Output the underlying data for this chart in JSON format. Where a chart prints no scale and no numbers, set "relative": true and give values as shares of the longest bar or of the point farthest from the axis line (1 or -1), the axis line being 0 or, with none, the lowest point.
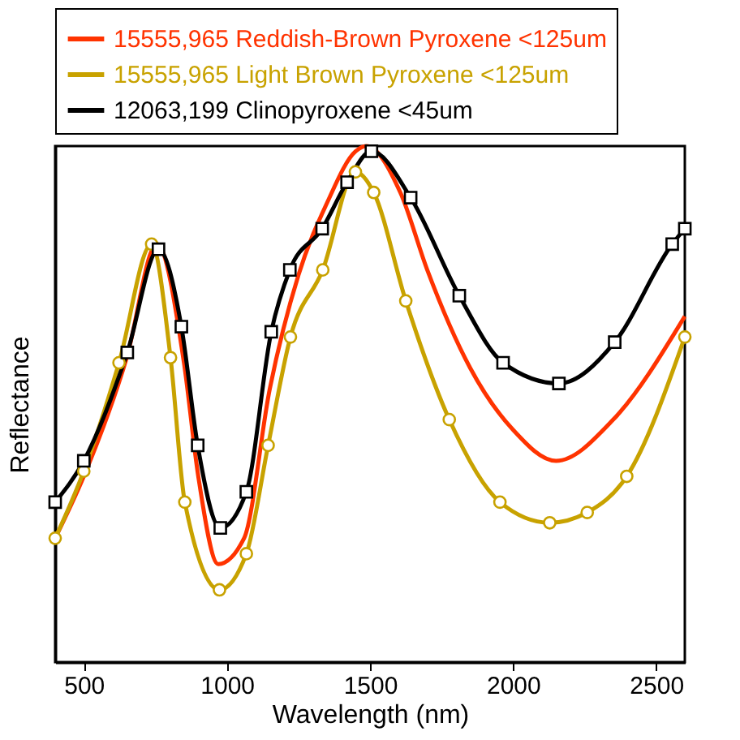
{
  "chart_data": {
    "type": "line",
    "xlabel": "Wavelength (nm)",
    "ylabel": "Reflectance",
    "relative": true,
    "xlim": [
      400,
      2600
    ],
    "xticks": [
      500,
      1000,
      1500,
      2000,
      2500
    ],
    "legend": "top",
    "grid": false,
    "line_style": "solid",
    "series": [
      {
        "name": "15555,965 Reddish-Brown Pyroxene <125um",
        "color": "#ff3300",
        "marker": "none",
        "x": [
          400,
          500,
          650,
          755,
          850,
          900,
          970,
          1060,
          1150,
          1250,
          1350,
          1450,
          1487,
          1606,
          1700,
          1850,
          2000,
          2150,
          2350,
          2600
        ],
        "values": [
          0.24,
          0.36,
          0.59,
          0.81,
          0.58,
          0.36,
          0.19,
          0.24,
          0.53,
          0.75,
          0.89,
          0.99,
          1.0,
          0.91,
          0.76,
          0.57,
          0.45,
          0.39,
          0.47,
          0.67
        ]
      },
      {
        "name": "15555,965 Light Brown Pyroxene <125um",
        "color": "#c8a200",
        "marker": "circle",
        "x": [
          400,
          500,
          623,
          737,
          803,
          853,
          974,
          1068,
          1144,
          1222,
          1335,
          1449,
          1513,
          1625,
          1777,
          1954,
          2128,
          2259,
          2397,
          2600
        ],
        "values": [
          0.24,
          0.37,
          0.58,
          0.81,
          0.59,
          0.31,
          0.14,
          0.21,
          0.42,
          0.63,
          0.76,
          0.95,
          0.91,
          0.7,
          0.47,
          0.31,
          0.27,
          0.29,
          0.36,
          0.63
        ]
      },
      {
        "name": "12063,199 Clinopyroxene <45um",
        "color": "#000000",
        "marker": "square",
        "x": [
          400,
          500,
          652,
          761,
          841,
          898,
          977,
          1068,
          1155,
          1220,
          1333,
          1420,
          1505,
          1642,
          1812,
          1965,
          2160,
          2355,
          2556,
          2600
        ],
        "values": [
          0.31,
          0.39,
          0.6,
          0.8,
          0.65,
          0.42,
          0.26,
          0.33,
          0.64,
          0.76,
          0.84,
          0.93,
          0.99,
          0.9,
          0.71,
          0.58,
          0.54,
          0.62,
          0.81,
          0.84
        ]
      }
    ]
  }
}
